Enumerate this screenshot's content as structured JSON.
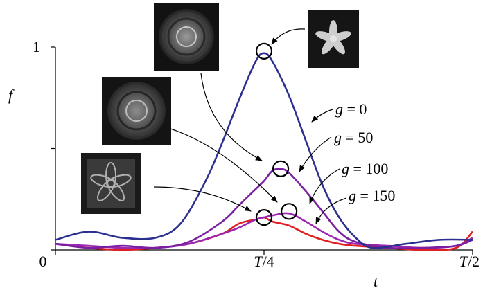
{
  "chart_data": {
    "type": "line",
    "xlabel": "t",
    "ylabel": "f",
    "x_ticks": [
      {
        "value": 0,
        "label": "0"
      },
      {
        "value": 0.25,
        "label": "T/4"
      },
      {
        "value": 0.5,
        "label": "T/2"
      }
    ],
    "y_ticks": [
      {
        "value": 1,
        "label": "1"
      },
      {
        "value": 0.5,
        "label": ""
      },
      {
        "value": 0,
        "label": ""
      }
    ],
    "xlim": [
      0,
      0.5
    ],
    "ylim": [
      0,
      1
    ],
    "x_unit": "T",
    "series": [
      {
        "name": "g = 0",
        "color": "#2b2f8f",
        "x": [
          0,
          0.04,
          0.08,
          0.12,
          0.15,
          0.18,
          0.2,
          0.22,
          0.24,
          0.25,
          0.26,
          0.28,
          0.3,
          0.32,
          0.34,
          0.36,
          0.38,
          0.42,
          0.46,
          0.5
        ],
        "y": [
          0.05,
          0.09,
          0.06,
          0.06,
          0.13,
          0.34,
          0.53,
          0.74,
          0.93,
          0.97,
          0.93,
          0.76,
          0.54,
          0.32,
          0.16,
          0.06,
          0.01,
          0.03,
          0.05,
          0.05
        ]
      },
      {
        "name": "g = 50",
        "color": "#7b1fa2",
        "x": [
          0,
          0.04,
          0.08,
          0.12,
          0.16,
          0.2,
          0.22,
          0.24,
          0.25,
          0.26,
          0.27,
          0.28,
          0.3,
          0.32,
          0.34,
          0.36,
          0.4,
          0.44,
          0.48,
          0.5
        ],
        "y": [
          0.03,
          0.01,
          0.02,
          0.01,
          0.04,
          0.14,
          0.22,
          0.3,
          0.34,
          0.39,
          0.4,
          0.38,
          0.29,
          0.19,
          0.09,
          0.04,
          0.01,
          0.01,
          0.02,
          0.05
        ]
      },
      {
        "name": "g = 100",
        "color": "#9c27b0",
        "x": [
          0,
          0.04,
          0.08,
          0.12,
          0.16,
          0.2,
          0.22,
          0.24,
          0.25,
          0.26,
          0.28,
          0.3,
          0.32,
          0.34,
          0.36,
          0.4,
          0.44,
          0.48,
          0.5
        ],
        "y": [
          0.03,
          0.02,
          0.01,
          0.01,
          0.03,
          0.08,
          0.11,
          0.15,
          0.16,
          0.17,
          0.18,
          0.14,
          0.09,
          0.05,
          0.03,
          0.02,
          0.01,
          0.02,
          0.06
        ]
      },
      {
        "name": "g = 150",
        "color": "#e02020",
        "x": [
          0,
          0.04,
          0.08,
          0.12,
          0.16,
          0.2,
          0.22,
          0.24,
          0.25,
          0.26,
          0.28,
          0.3,
          0.32,
          0.34,
          0.36,
          0.4,
          0.44,
          0.48,
          0.5
        ],
        "y": [
          0.03,
          0.01,
          0.0,
          0.01,
          0.03,
          0.08,
          0.13,
          0.15,
          0.16,
          0.14,
          0.12,
          0.08,
          0.05,
          0.03,
          0.02,
          0.01,
          0.0,
          0.01,
          0.09
        ]
      }
    ],
    "markers": [
      {
        "series": "g = 0",
        "x": 0.25,
        "y": 0.98
      },
      {
        "series": "g = 50",
        "x": 0.27,
        "y": 0.4
      },
      {
        "series": "g = 100",
        "x": 0.28,
        "y": 0.19
      },
      {
        "series": "g = 150",
        "x": 0.25,
        "y": 0.16
      }
    ],
    "grid": false,
    "legend": "inline labels with arrows",
    "insets": [
      {
        "target": "g = 0",
        "description": "bright flower pattern"
      },
      {
        "target": "g = 50",
        "description": "diffuse ring pattern"
      },
      {
        "target": "g = 100",
        "description": "diffuse ring pattern"
      },
      {
        "target": "g = 150",
        "description": "square flower pattern"
      }
    ]
  }
}
